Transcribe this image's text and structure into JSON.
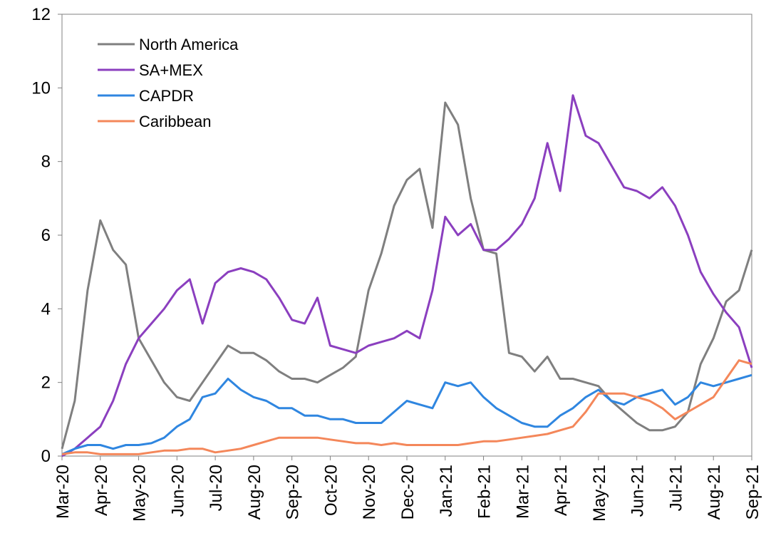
{
  "chart_data": {
    "type": "line",
    "categories": [
      "Mar-20",
      null,
      null,
      "Apr-20",
      null,
      null,
      "May-20",
      null,
      null,
      "Jun-20",
      null,
      null,
      "Jul-20",
      null,
      null,
      "Aug-20",
      null,
      null,
      "Sep-20",
      null,
      null,
      "Oct-20",
      null,
      null,
      "Nov-20",
      null,
      null,
      "Dec-20",
      null,
      null,
      "Jan-21",
      null,
      null,
      "Feb-21",
      null,
      null,
      "Mar-21",
      null,
      null,
      "Apr-21",
      null,
      null,
      "May-21",
      null,
      null,
      "Jun-21",
      null,
      null,
      "Jul-21",
      null,
      null,
      "Aug-21",
      null,
      null,
      "Sep-21"
    ],
    "series": [
      {
        "name": "North America",
        "color": "#7f7f7f",
        "values": [
          0.2,
          1.5,
          4.5,
          6.4,
          5.6,
          5.2,
          3.2,
          2.6,
          2.0,
          1.6,
          1.5,
          2.0,
          2.5,
          3.0,
          2.8,
          2.8,
          2.6,
          2.3,
          2.1,
          2.1,
          2.0,
          2.2,
          2.4,
          2.7,
          4.5,
          5.5,
          6.8,
          7.5,
          7.8,
          6.2,
          9.6,
          9.0,
          7.0,
          5.6,
          5.5,
          2.8,
          2.7,
          2.3,
          2.7,
          2.1,
          2.1,
          2.0,
          1.9,
          1.5,
          1.2,
          0.9,
          0.7,
          0.7,
          0.8,
          1.2,
          2.5,
          3.2,
          4.2,
          4.5,
          5.6
        ]
      },
      {
        "name": "SA+MEX",
        "color": "#8b3fbf",
        "values": [
          0.0,
          0.2,
          0.5,
          0.8,
          1.5,
          2.5,
          3.2,
          3.6,
          4.0,
          4.5,
          4.8,
          3.6,
          4.7,
          5.0,
          5.1,
          5.0,
          4.8,
          4.3,
          3.7,
          3.6,
          4.3,
          3.0,
          2.9,
          2.8,
          3.0,
          3.1,
          3.2,
          3.4,
          3.2,
          4.5,
          6.5,
          6.0,
          6.3,
          5.6,
          5.6,
          5.9,
          6.3,
          7.0,
          8.5,
          7.2,
          9.8,
          8.7,
          8.5,
          7.9,
          7.3,
          7.2,
          7.0,
          7.3,
          6.8,
          6.0,
          5.0,
          4.4,
          3.9,
          3.5,
          2.4
        ]
      },
      {
        "name": "CAPDR",
        "color": "#2f86e0",
        "values": [
          0.05,
          0.2,
          0.3,
          0.3,
          0.2,
          0.3,
          0.3,
          0.35,
          0.5,
          0.8,
          1.0,
          1.6,
          1.7,
          2.1,
          1.8,
          1.6,
          1.5,
          1.3,
          1.3,
          1.1,
          1.1,
          1.0,
          1.0,
          0.9,
          0.9,
          0.9,
          1.2,
          1.5,
          1.4,
          1.3,
          2.0,
          1.9,
          2.0,
          1.6,
          1.3,
          1.1,
          0.9,
          0.8,
          0.8,
          1.1,
          1.3,
          1.6,
          1.8,
          1.5,
          1.4,
          1.6,
          1.7,
          1.8,
          1.4,
          1.6,
          2.0,
          1.9,
          2.0,
          2.1,
          2.2
        ]
      },
      {
        "name": "Caribbean",
        "color": "#f4875a",
        "values": [
          0.05,
          0.1,
          0.1,
          0.05,
          0.05,
          0.05,
          0.05,
          0.1,
          0.15,
          0.15,
          0.2,
          0.2,
          0.1,
          0.15,
          0.2,
          0.3,
          0.4,
          0.5,
          0.5,
          0.5,
          0.5,
          0.45,
          0.4,
          0.35,
          0.35,
          0.3,
          0.35,
          0.3,
          0.3,
          0.3,
          0.3,
          0.3,
          0.35,
          0.4,
          0.4,
          0.45,
          0.5,
          0.55,
          0.6,
          0.7,
          0.8,
          1.2,
          1.7,
          1.7,
          1.7,
          1.6,
          1.5,
          1.3,
          1.0,
          1.2,
          1.4,
          1.6,
          2.1,
          2.6,
          2.5
        ]
      }
    ],
    "ylim": [
      0,
      12
    ],
    "yticks": [
      0,
      2,
      4,
      6,
      8,
      10,
      12
    ],
    "grid": false,
    "legend": "upper left"
  }
}
